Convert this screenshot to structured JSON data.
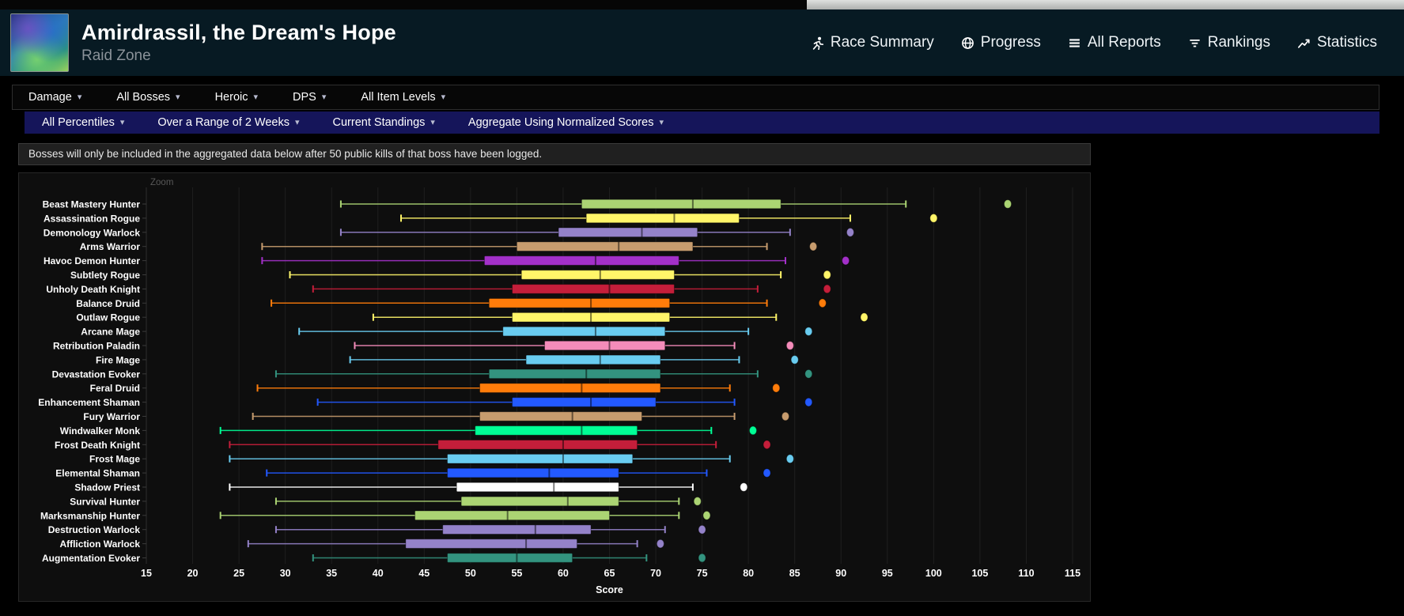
{
  "header": {
    "title": "Amirdrassil, the Dream's Hope",
    "subtitle": "Raid Zone",
    "nav": [
      {
        "label": "Race Summary",
        "icon": "runner-icon"
      },
      {
        "label": "Progress",
        "icon": "globe-icon"
      },
      {
        "label": "All Reports",
        "icon": "list-icon"
      },
      {
        "label": "Rankings",
        "icon": "rankings-icon"
      },
      {
        "label": "Statistics",
        "icon": "stats-icon"
      }
    ]
  },
  "filters_primary": [
    {
      "label": "Damage"
    },
    {
      "label": "All Bosses"
    },
    {
      "label": "Heroic"
    },
    {
      "label": "DPS"
    },
    {
      "label": "All Item Levels"
    }
  ],
  "filters_secondary": [
    {
      "label": "All Percentiles"
    },
    {
      "label": "Over a Range of 2 Weeks"
    },
    {
      "label": "Current Standings"
    },
    {
      "label": "Aggregate Using Normalized Scores"
    }
  ],
  "notice": "Bosses will only be included in the aggregated data below after 50 public kills of that boss have been logged.",
  "chart_data": {
    "type": "boxplot",
    "zoom_label": "Zoom",
    "xlabel": "Score",
    "xlim": [
      15,
      115
    ],
    "xticks": [
      15,
      20,
      25,
      30,
      35,
      40,
      45,
      50,
      55,
      60,
      65,
      70,
      75,
      80,
      85,
      90,
      95,
      100,
      105,
      110,
      115
    ],
    "grid": true,
    "axis_colors": {
      "grid": "#1f1f1f",
      "axis_line": "#2f2f2f",
      "tick_label": "#ffffff"
    },
    "series": [
      {
        "name": "Beast Mastery Hunter",
        "color": "#abd473",
        "low": 36,
        "q1": 62,
        "median": 74,
        "q3": 83.5,
        "high": 97,
        "outliers": [
          108
        ]
      },
      {
        "name": "Assassination Rogue",
        "color": "#fff569",
        "low": 42.5,
        "q1": 62.5,
        "median": 72,
        "q3": 79,
        "high": 91,
        "outliers": [
          100
        ]
      },
      {
        "name": "Demonology Warlock",
        "color": "#9482c9",
        "low": 36,
        "q1": 59.5,
        "median": 68.5,
        "q3": 74.5,
        "high": 84.5,
        "outliers": [
          91
        ]
      },
      {
        "name": "Arms Warrior",
        "color": "#c79c6e",
        "low": 27.5,
        "q1": 55,
        "median": 66,
        "q3": 74,
        "high": 82,
        "outliers": [
          87
        ]
      },
      {
        "name": "Havoc Demon Hunter",
        "color": "#a330c9",
        "low": 27.5,
        "q1": 51.5,
        "median": 63.5,
        "q3": 72.5,
        "high": 84,
        "outliers": [
          90.5
        ]
      },
      {
        "name": "Subtlety Rogue",
        "color": "#fff569",
        "low": 30.5,
        "q1": 55.5,
        "median": 64,
        "q3": 72,
        "high": 83.5,
        "outliers": [
          88.5
        ]
      },
      {
        "name": "Unholy Death Knight",
        "color": "#c41e3a",
        "low": 33,
        "q1": 54.5,
        "median": 65,
        "q3": 72,
        "high": 81,
        "outliers": [
          88.5
        ]
      },
      {
        "name": "Balance Druid",
        "color": "#ff7c0a",
        "low": 28.5,
        "q1": 52,
        "median": 63,
        "q3": 71.5,
        "high": 82,
        "outliers": [
          88
        ]
      },
      {
        "name": "Outlaw Rogue",
        "color": "#fff569",
        "low": 39.5,
        "q1": 54.5,
        "median": 63,
        "q3": 71.5,
        "high": 83,
        "outliers": [
          92.5
        ]
      },
      {
        "name": "Arcane Mage",
        "color": "#69ccf0",
        "low": 31.5,
        "q1": 53.5,
        "median": 63.5,
        "q3": 71,
        "high": 80,
        "outliers": [
          86.5
        ]
      },
      {
        "name": "Retribution Paladin",
        "color": "#f48cba",
        "low": 37.5,
        "q1": 58,
        "median": 65,
        "q3": 71,
        "high": 78.5,
        "outliers": [
          84.5
        ]
      },
      {
        "name": "Fire Mage",
        "color": "#69ccf0",
        "low": 37,
        "q1": 56,
        "median": 64,
        "q3": 70.5,
        "high": 79,
        "outliers": [
          85
        ]
      },
      {
        "name": "Devastation Evoker",
        "color": "#33937f",
        "low": 29,
        "q1": 52,
        "median": 62.5,
        "q3": 70.5,
        "high": 81,
        "outliers": [
          86.5
        ]
      },
      {
        "name": "Feral Druid",
        "color": "#ff7c0a",
        "low": 27,
        "q1": 51,
        "median": 62,
        "q3": 70.5,
        "high": 78,
        "outliers": [
          83
        ]
      },
      {
        "name": "Enhancement Shaman",
        "color": "#2359ff",
        "low": 33.5,
        "q1": 54.5,
        "median": 63,
        "q3": 70,
        "high": 78.5,
        "outliers": [
          86.5
        ]
      },
      {
        "name": "Fury Warrior",
        "color": "#c79c6e",
        "low": 26.5,
        "q1": 51,
        "median": 61,
        "q3": 68.5,
        "high": 78.5,
        "outliers": [
          84
        ]
      },
      {
        "name": "Windwalker Monk",
        "color": "#00ff96",
        "low": 23,
        "q1": 50.5,
        "median": 62,
        "q3": 68,
        "high": 76,
        "outliers": [
          80.5
        ]
      },
      {
        "name": "Frost Death Knight",
        "color": "#c41e3a",
        "low": 24,
        "q1": 46.5,
        "median": 60,
        "q3": 68,
        "high": 76.5,
        "outliers": [
          82
        ]
      },
      {
        "name": "Frost Mage",
        "color": "#69ccf0",
        "low": 24,
        "q1": 47.5,
        "median": 60,
        "q3": 67.5,
        "high": 78,
        "outliers": [
          84.5
        ]
      },
      {
        "name": "Elemental Shaman",
        "color": "#2359ff",
        "low": 28,
        "q1": 47.5,
        "median": 58.5,
        "q3": 66,
        "high": 75.5,
        "outliers": [
          82
        ]
      },
      {
        "name": "Shadow Priest",
        "color": "#ffffff",
        "low": 24,
        "q1": 48.5,
        "median": 59,
        "q3": 66,
        "high": 74,
        "outliers": [
          79.5
        ]
      },
      {
        "name": "Survival Hunter",
        "color": "#abd473",
        "low": 29,
        "q1": 49,
        "median": 60.5,
        "q3": 66,
        "high": 72.5,
        "outliers": [
          74.5
        ]
      },
      {
        "name": "Marksmanship Hunter",
        "color": "#abd473",
        "low": 23,
        "q1": 44,
        "median": 54,
        "q3": 65,
        "high": 72.5,
        "outliers": [
          75.5
        ]
      },
      {
        "name": "Destruction Warlock",
        "color": "#9482c9",
        "low": 29,
        "q1": 47,
        "median": 57,
        "q3": 63,
        "high": 71,
        "outliers": [
          75
        ]
      },
      {
        "name": "Affliction Warlock",
        "color": "#9482c9",
        "low": 26,
        "q1": 43,
        "median": 56,
        "q3": 61.5,
        "high": 68,
        "outliers": [
          70.5
        ]
      },
      {
        "name": "Augmentation Evoker",
        "color": "#33937f",
        "low": 33,
        "q1": 47.5,
        "median": 55,
        "q3": 61,
        "high": 69,
        "outliers": [
          75
        ]
      }
    ]
  }
}
